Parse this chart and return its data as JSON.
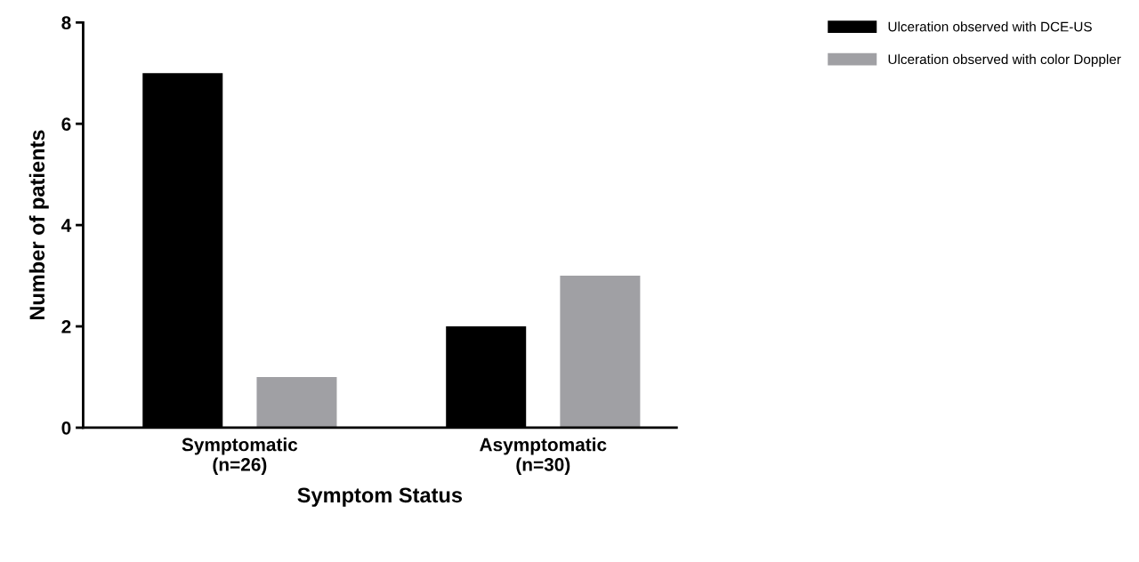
{
  "chart_data": {
    "type": "bar",
    "xlabel": "Symptom Status",
    "ylabel": "Number of patients",
    "categories": [
      "Symptomatic\n(n=26)",
      "Asymptomatic\n(n=30)"
    ],
    "series": [
      {
        "name": "Ulceration observed with DCE-US",
        "color": "#000000",
        "values": [
          7,
          2
        ]
      },
      {
        "name": "Ulceration observed with color Doppler",
        "color": "#a0a0a4",
        "values": [
          1,
          3
        ]
      }
    ],
    "ylim": [
      0,
      8
    ],
    "yticks": [
      0,
      2,
      4,
      6,
      8
    ],
    "grid": false,
    "legend": "top right"
  }
}
